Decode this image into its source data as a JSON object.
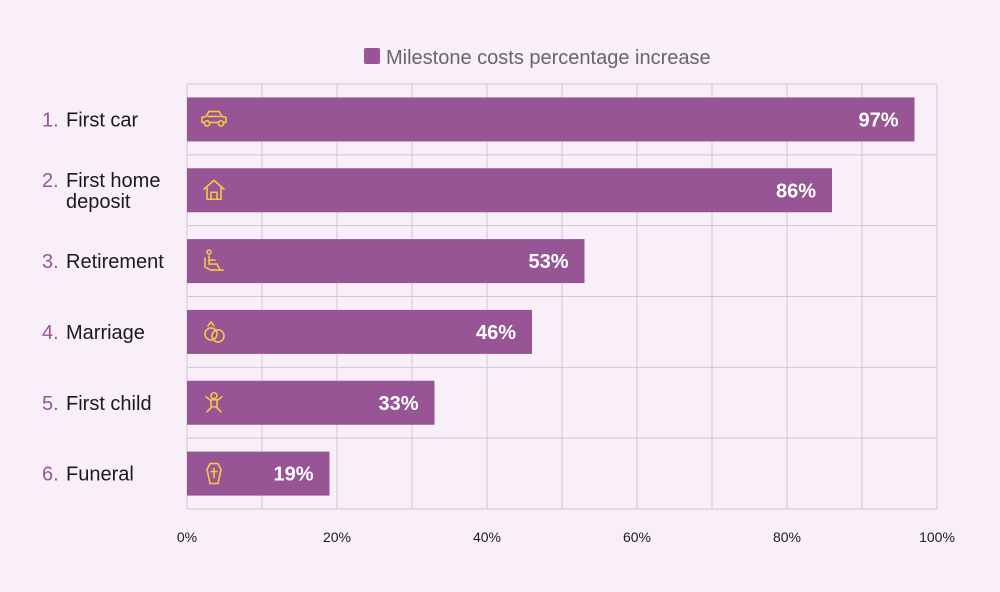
{
  "colors": {
    "bar": "#975595",
    "number": "#975595",
    "icon": "#f4c64a",
    "grid": "#cfc8cf",
    "legend_text": "#666666",
    "background": "#f9eff9"
  },
  "chart_data": {
    "type": "bar",
    "orientation": "horizontal",
    "legend": {
      "label": "Milestone costs percentage increase",
      "placement": "top"
    },
    "categories": [
      {
        "num": "1.",
        "label": [
          "First car"
        ],
        "icon": "car-icon"
      },
      {
        "num": "2.",
        "label": [
          "First home",
          "deposit"
        ],
        "icon": "house-icon"
      },
      {
        "num": "3.",
        "label": [
          "Retirement"
        ],
        "icon": "seated-person-icon"
      },
      {
        "num": "4.",
        "label": [
          "Marriage"
        ],
        "icon": "wedding-rings-icon"
      },
      {
        "num": "5.",
        "label": [
          "First child"
        ],
        "icon": "baby-icon"
      },
      {
        "num": "6.",
        "label": [
          "Funeral"
        ],
        "icon": "coffin-icon"
      }
    ],
    "series": [
      {
        "name": "Milestone costs percentage increase",
        "values": [
          97,
          86,
          53,
          46,
          33,
          19
        ]
      }
    ],
    "value_labels": [
      "97%",
      "86%",
      "53%",
      "46%",
      "33%",
      "19%"
    ],
    "xlim": [
      0,
      100
    ],
    "x_ticks": [
      "0%",
      "20%",
      "40%",
      "60%",
      "80%",
      "100%"
    ],
    "grid": true
  }
}
